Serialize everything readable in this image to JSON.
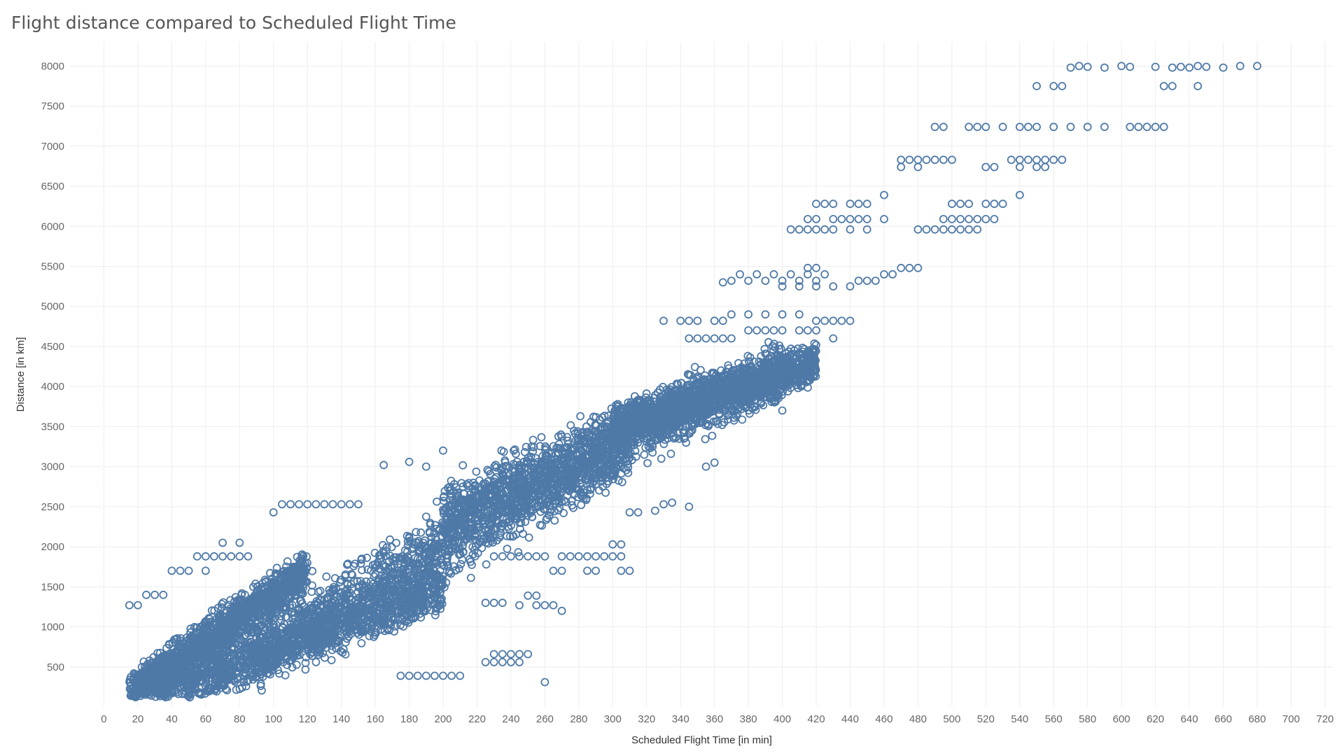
{
  "chart_data": {
    "type": "scatter",
    "title": "Flight distance compared to Scheduled Flight Time",
    "xlabel": "Scheduled Flight Time [in min]",
    "ylabel": "Distance [in km]",
    "xlim": [
      -20,
      725
    ],
    "ylim": [
      0,
      8300
    ],
    "xticks": [
      0,
      20,
      40,
      60,
      80,
      100,
      120,
      140,
      160,
      180,
      200,
      220,
      240,
      260,
      280,
      300,
      320,
      340,
      360,
      380,
      400,
      420,
      440,
      460,
      480,
      500,
      520,
      540,
      560,
      580,
      600,
      620,
      640,
      660,
      680,
      700,
      720
    ],
    "yticks": [
      500,
      1000,
      1500,
      2000,
      2500,
      3000,
      3500,
      4000,
      4500,
      5000,
      5500,
      6000,
      6500,
      7000,
      7500,
      8000
    ],
    "grid": true,
    "marker": "hollow-circle",
    "color": "#4e79a7",
    "bands": [
      {
        "x0": 15,
        "x1": 120,
        "y0": 150,
        "y1": 1700,
        "spread": 260
      },
      {
        "x0": 30,
        "x1": 200,
        "y0": 150,
        "y1": 1500,
        "spread": 300
      },
      {
        "x0": 90,
        "x1": 310,
        "y0": 700,
        "y1": 3300,
        "spread": 420
      },
      {
        "x0": 200,
        "x1": 400,
        "y0": 2400,
        "y1": 4200,
        "spread": 380
      },
      {
        "x0": 300,
        "x1": 420,
        "y0": 3500,
        "y1": 4300,
        "spread": 250
      }
    ],
    "points": [
      [
        680,
        8000
      ],
      [
        670,
        8000
      ],
      [
        660,
        7980
      ],
      [
        650,
        7990
      ],
      [
        645,
        8000
      ],
      [
        640,
        7980
      ],
      [
        635,
        7990
      ],
      [
        630,
        7980
      ],
      [
        620,
        7990
      ],
      [
        600,
        8000
      ],
      [
        590,
        7980
      ],
      [
        580,
        7990
      ],
      [
        575,
        8000
      ],
      [
        570,
        7980
      ],
      [
        605,
        7990
      ],
      [
        550,
        7750
      ],
      [
        560,
        7750
      ],
      [
        565,
        7750
      ],
      [
        625,
        7750
      ],
      [
        630,
        7750
      ],
      [
        645,
        7750
      ],
      [
        490,
        7240
      ],
      [
        495,
        7240
      ],
      [
        510,
        7240
      ],
      [
        515,
        7240
      ],
      [
        520,
        7240
      ],
      [
        530,
        7240
      ],
      [
        540,
        7240
      ],
      [
        545,
        7240
      ],
      [
        550,
        7240
      ],
      [
        560,
        7240
      ],
      [
        570,
        7240
      ],
      [
        580,
        7240
      ],
      [
        590,
        7240
      ],
      [
        605,
        7240
      ],
      [
        610,
        7240
      ],
      [
        615,
        7240
      ],
      [
        620,
        7240
      ],
      [
        625,
        7240
      ],
      [
        470,
        6830
      ],
      [
        475,
        6830
      ],
      [
        480,
        6830
      ],
      [
        485,
        6830
      ],
      [
        490,
        6830
      ],
      [
        495,
        6830
      ],
      [
        500,
        6830
      ],
      [
        470,
        6740
      ],
      [
        480,
        6740
      ],
      [
        520,
        6740
      ],
      [
        525,
        6740
      ],
      [
        535,
        6830
      ],
      [
        540,
        6830
      ],
      [
        545,
        6830
      ],
      [
        550,
        6830
      ],
      [
        555,
        6830
      ],
      [
        560,
        6830
      ],
      [
        540,
        6740
      ],
      [
        550,
        6740
      ],
      [
        555,
        6740
      ],
      [
        565,
        6830
      ],
      [
        420,
        6280
      ],
      [
        425,
        6280
      ],
      [
        430,
        6280
      ],
      [
        440,
        6280
      ],
      [
        445,
        6280
      ],
      [
        450,
        6280
      ],
      [
        460,
        6390
      ],
      [
        500,
        6280
      ],
      [
        505,
        6280
      ],
      [
        510,
        6280
      ],
      [
        520,
        6280
      ],
      [
        525,
        6280
      ],
      [
        530,
        6280
      ],
      [
        540,
        6390
      ],
      [
        405,
        5960
      ],
      [
        410,
        5960
      ],
      [
        415,
        5960
      ],
      [
        420,
        5960
      ],
      [
        425,
        5960
      ],
      [
        430,
        5960
      ],
      [
        440,
        5960
      ],
      [
        450,
        5960
      ],
      [
        415,
        6090
      ],
      [
        420,
        6090
      ],
      [
        430,
        6090
      ],
      [
        435,
        6090
      ],
      [
        440,
        6090
      ],
      [
        445,
        6090
      ],
      [
        450,
        6090
      ],
      [
        460,
        6090
      ],
      [
        480,
        5960
      ],
      [
        485,
        5960
      ],
      [
        490,
        5960
      ],
      [
        495,
        5960
      ],
      [
        500,
        5960
      ],
      [
        505,
        5960
      ],
      [
        510,
        5960
      ],
      [
        515,
        5960
      ],
      [
        495,
        6090
      ],
      [
        500,
        6090
      ],
      [
        505,
        6090
      ],
      [
        510,
        6090
      ],
      [
        515,
        6090
      ],
      [
        520,
        6090
      ],
      [
        525,
        6090
      ],
      [
        370,
        5320
      ],
      [
        375,
        5400
      ],
      [
        380,
        5320
      ],
      [
        385,
        5400
      ],
      [
        390,
        5320
      ],
      [
        395,
        5400
      ],
      [
        400,
        5320
      ],
      [
        405,
        5400
      ],
      [
        410,
        5320
      ],
      [
        415,
        5400
      ],
      [
        420,
        5320
      ],
      [
        425,
        5400
      ],
      [
        365,
        5300
      ],
      [
        400,
        5250
      ],
      [
        410,
        5250
      ],
      [
        420,
        5250
      ],
      [
        430,
        5250
      ],
      [
        440,
        5250
      ],
      [
        415,
        5480
      ],
      [
        420,
        5480
      ],
      [
        445,
        5320
      ],
      [
        450,
        5320
      ],
      [
        455,
        5320
      ],
      [
        460,
        5400
      ],
      [
        465,
        5400
      ],
      [
        470,
        5480
      ],
      [
        475,
        5480
      ],
      [
        480,
        5480
      ],
      [
        330,
        4820
      ],
      [
        340,
        4820
      ],
      [
        345,
        4820
      ],
      [
        350,
        4820
      ],
      [
        360,
        4820
      ],
      [
        365,
        4820
      ],
      [
        370,
        4900
      ],
      [
        380,
        4900
      ],
      [
        390,
        4900
      ],
      [
        400,
        4900
      ],
      [
        410,
        4900
      ],
      [
        425,
        4820
      ],
      [
        430,
        4820
      ],
      [
        435,
        4820
      ],
      [
        440,
        4820
      ],
      [
        420,
        4820
      ],
      [
        345,
        4600
      ],
      [
        350,
        4600
      ],
      [
        355,
        4600
      ],
      [
        360,
        4600
      ],
      [
        365,
        4600
      ],
      [
        370,
        4600
      ],
      [
        380,
        4700
      ],
      [
        385,
        4700
      ],
      [
        390,
        4700
      ],
      [
        395,
        4700
      ],
      [
        400,
        4700
      ],
      [
        410,
        4700
      ],
      [
        415,
        4700
      ],
      [
        420,
        4700
      ],
      [
        430,
        4600
      ],
      [
        400,
        3700
      ],
      [
        360,
        3050
      ],
      [
        355,
        3000
      ],
      [
        345,
        2500
      ],
      [
        335,
        2550
      ],
      [
        330,
        2530
      ],
      [
        325,
        2450
      ],
      [
        310,
        2430
      ],
      [
        315,
        2430
      ],
      [
        260,
        310
      ],
      [
        200,
        3200
      ],
      [
        190,
        3000
      ],
      [
        165,
        3020
      ],
      [
        180,
        3060
      ],
      [
        15,
        1270
      ],
      [
        20,
        1270
      ],
      [
        25,
        1400
      ],
      [
        30,
        1400
      ],
      [
        35,
        1400
      ],
      [
        40,
        1700
      ],
      [
        45,
        1700
      ],
      [
        50,
        1700
      ],
      [
        60,
        1700
      ],
      [
        55,
        1880
      ],
      [
        60,
        1880
      ],
      [
        65,
        1880
      ],
      [
        70,
        1880
      ],
      [
        75,
        1880
      ],
      [
        80,
        1880
      ],
      [
        85,
        1880
      ],
      [
        70,
        2050
      ],
      [
        80,
        2050
      ],
      [
        100,
        2430
      ],
      [
        105,
        2530
      ],
      [
        110,
        2530
      ],
      [
        115,
        2530
      ],
      [
        120,
        2530
      ],
      [
        125,
        2530
      ],
      [
        130,
        2530
      ],
      [
        135,
        2530
      ],
      [
        140,
        2530
      ],
      [
        145,
        2530
      ],
      [
        150,
        2530
      ],
      [
        230,
        1880
      ],
      [
        235,
        1880
      ],
      [
        240,
        1880
      ],
      [
        245,
        1880
      ],
      [
        250,
        1880
      ],
      [
        255,
        1880
      ],
      [
        260,
        1880
      ],
      [
        270,
        1880
      ],
      [
        275,
        1880
      ],
      [
        280,
        1880
      ],
      [
        285,
        1880
      ],
      [
        290,
        1880
      ],
      [
        295,
        1880
      ],
      [
        300,
        1880
      ],
      [
        305,
        1880
      ],
      [
        310,
        1700
      ],
      [
        305,
        1700
      ],
      [
        290,
        1700
      ],
      [
        285,
        1700
      ],
      [
        265,
        1700
      ],
      [
        270,
        1700
      ],
      [
        300,
        2030
      ],
      [
        305,
        2030
      ],
      [
        250,
        1390
      ],
      [
        255,
        1390
      ],
      [
        245,
        1270
      ],
      [
        255,
        1270
      ],
      [
        260,
        1270
      ],
      [
        265,
        1270
      ],
      [
        270,
        1200
      ],
      [
        225,
        1300
      ],
      [
        230,
        1300
      ],
      [
        235,
        1300
      ],
      [
        230,
        660
      ],
      [
        235,
        660
      ],
      [
        240,
        660
      ],
      [
        245,
        660
      ],
      [
        250,
        660
      ],
      [
        225,
        560
      ],
      [
        230,
        560
      ],
      [
        235,
        560
      ],
      [
        240,
        560
      ],
      [
        245,
        560
      ],
      [
        175,
        390
      ],
      [
        180,
        390
      ],
      [
        185,
        390
      ],
      [
        190,
        390
      ],
      [
        195,
        390
      ],
      [
        200,
        390
      ],
      [
        205,
        390
      ],
      [
        210,
        390
      ]
    ]
  }
}
